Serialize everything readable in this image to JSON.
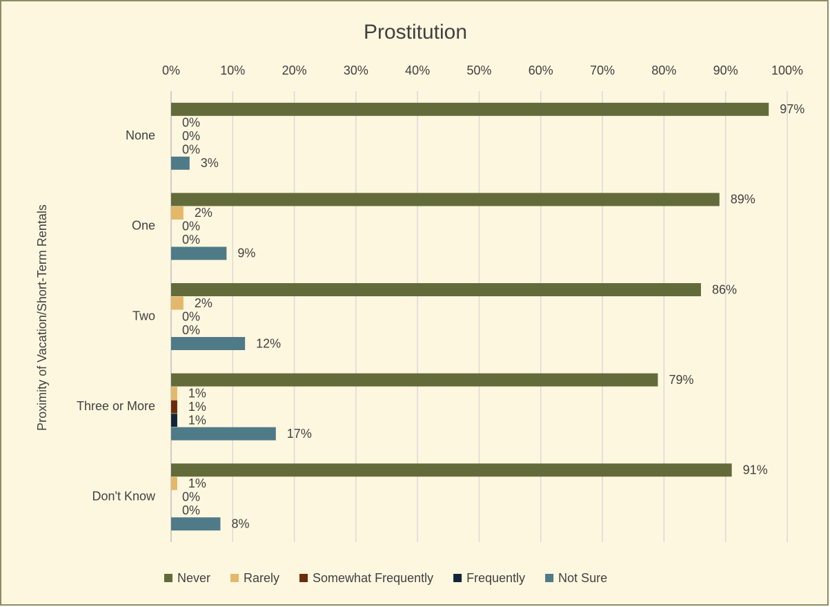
{
  "chart_data": {
    "type": "hbar",
    "title": "Prostitution",
    "y_label": "Proximity of Vacation/Short-Term Rentals",
    "categories": [
      "None",
      "One",
      "Two",
      "Three or More",
      "Don't Know"
    ],
    "series": [
      {
        "name": "Never",
        "color": "#636b3b",
        "values": [
          97,
          89,
          86,
          79,
          91
        ],
        "value_labels": [
          "97%",
          "89%",
          "86%",
          "79%",
          "91%"
        ]
      },
      {
        "name": "Rarely",
        "color": "#e4b86a",
        "values": [
          0,
          2,
          2,
          1,
          1
        ],
        "value_labels": [
          "0%",
          "2%",
          "2%",
          "1%",
          "1%"
        ]
      },
      {
        "name": "Somewhat Frequently",
        "color": "#6b2c0a",
        "values": [
          0,
          0,
          0,
          1,
          0
        ],
        "value_labels": [
          "0%",
          "0%",
          "0%",
          "1%",
          "0%"
        ]
      },
      {
        "name": "Frequently",
        "color": "#14253a",
        "values": [
          0,
          0,
          0,
          1,
          0
        ],
        "value_labels": [
          "0%",
          "0%",
          "0%",
          "1%",
          "0%"
        ]
      },
      {
        "name": "Not Sure",
        "color": "#4f7a88",
        "values": [
          3,
          9,
          12,
          17,
          8
        ],
        "value_labels": [
          "3%",
          "9%",
          "12%",
          "17%",
          "8%"
        ]
      }
    ],
    "xlim": [
      0,
      100
    ],
    "xticks": [
      {
        "value": 0,
        "label": "0%"
      },
      {
        "value": 10,
        "label": "10%"
      },
      {
        "value": 20,
        "label": "20%"
      },
      {
        "value": 30,
        "label": "30%"
      },
      {
        "value": 40,
        "label": "40%"
      },
      {
        "value": 50,
        "label": "50%"
      },
      {
        "value": 60,
        "label": "60%"
      },
      {
        "value": 70,
        "label": "70%"
      },
      {
        "value": 80,
        "label": "80%"
      },
      {
        "value": 90,
        "label": "90%"
      },
      {
        "value": 100,
        "label": "100%"
      }
    ],
    "grid": true,
    "legend": "bottom"
  }
}
